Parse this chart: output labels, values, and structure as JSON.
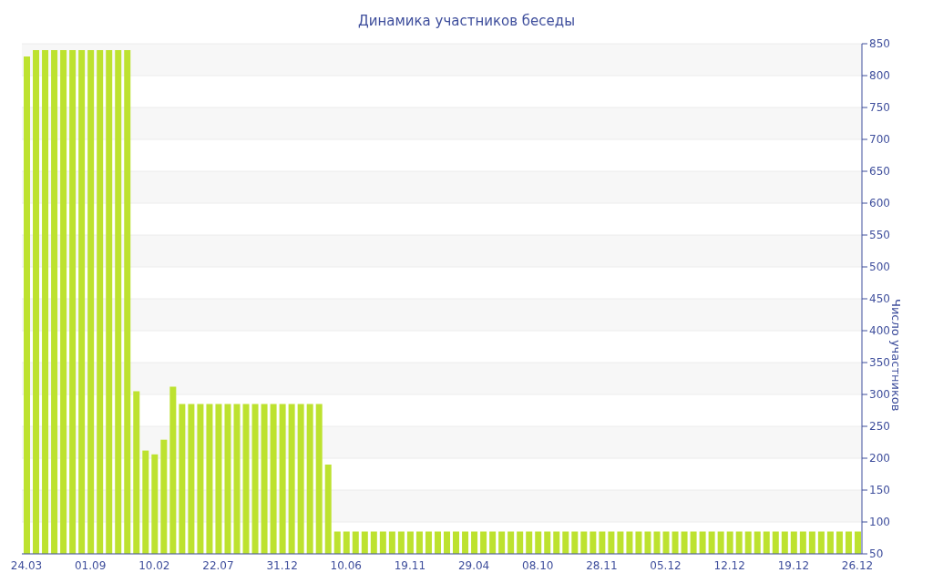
{
  "chart_data": {
    "type": "bar",
    "title": "Динамика участников беседы",
    "ylabel": "Число участников",
    "categories": [
      "24.03",
      null,
      null,
      null,
      null,
      null,
      null,
      "01.09",
      null,
      null,
      null,
      null,
      null,
      null,
      "10.02",
      null,
      null,
      null,
      null,
      null,
      null,
      "22.07",
      null,
      null,
      null,
      null,
      null,
      null,
      "31.12",
      null,
      null,
      null,
      null,
      null,
      null,
      "10.06",
      null,
      null,
      null,
      null,
      null,
      null,
      "19.11",
      null,
      null,
      null,
      null,
      null,
      null,
      "29.04",
      null,
      null,
      null,
      null,
      null,
      null,
      "08.10",
      null,
      null,
      null,
      null,
      null,
      null,
      "28.11",
      null,
      null,
      null,
      null,
      null,
      null,
      "05.12",
      null,
      null,
      null,
      null,
      null,
      null,
      "12.12",
      null,
      null,
      null,
      null,
      null,
      null,
      "19.12",
      null,
      null,
      null,
      null,
      null,
      null,
      "26.12"
    ],
    "values": [
      830,
      840,
      840,
      840,
      840,
      840,
      840,
      840,
      840,
      840,
      840,
      840,
      305,
      212,
      206,
      229,
      312,
      285,
      285,
      285,
      285,
      285,
      285,
      285,
      285,
      285,
      285,
      285,
      285,
      285,
      285,
      285,
      285,
      190,
      85,
      85,
      85,
      85,
      85,
      85,
      85,
      85,
      85,
      85,
      85,
      85,
      85,
      85,
      85,
      85,
      85,
      85,
      85,
      85,
      85,
      85,
      85,
      85,
      85,
      85,
      85,
      85,
      85,
      85,
      85,
      85,
      85,
      85,
      85,
      85,
      85,
      85,
      85,
      85,
      85,
      85,
      85,
      85,
      85,
      85,
      85,
      85,
      85,
      85,
      85,
      85,
      85,
      85,
      85,
      85,
      85,
      85
    ],
    "color": "#bde22f",
    "ylim": [
      50,
      850
    ],
    "yticks": [
      50,
      100,
      150,
      200,
      250,
      300,
      350,
      400,
      450,
      500,
      550,
      600,
      650,
      700,
      750,
      800,
      850
    ],
    "grid": "y"
  }
}
